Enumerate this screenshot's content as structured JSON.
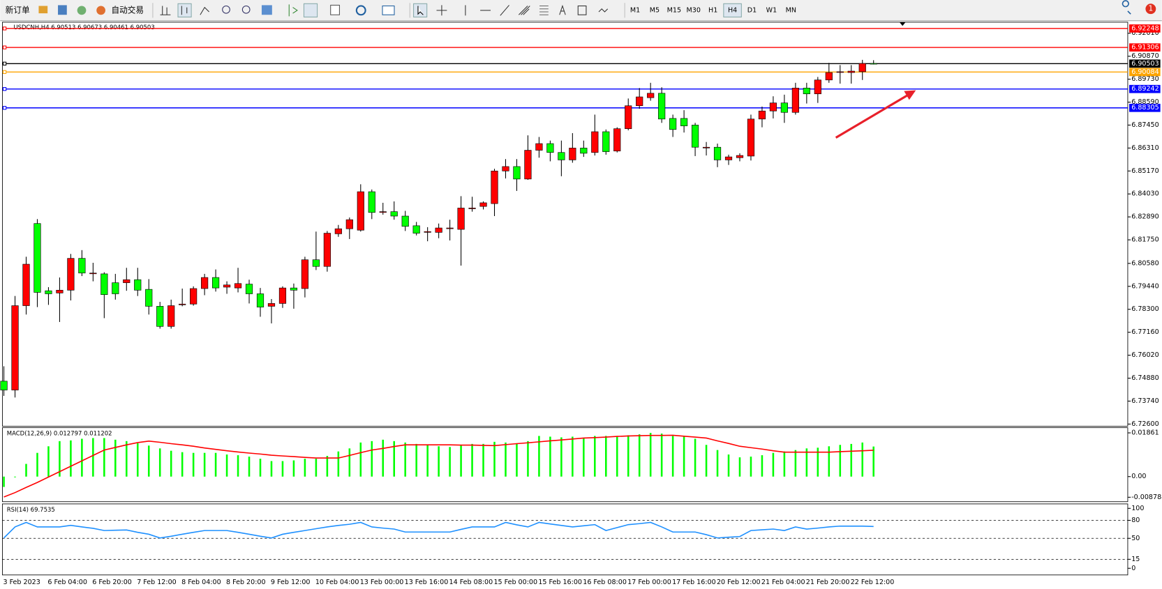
{
  "toolbar": {
    "buttons": [
      "新订单",
      "自动交易"
    ],
    "timeframes": [
      "M1",
      "M5",
      "M15",
      "M30",
      "H1",
      "H4",
      "D1",
      "W1",
      "MN"
    ],
    "active_timeframe": "H4",
    "badge": "1"
  },
  "chart_data": [
    {
      "type": "candlestick",
      "title": "USDCNH,H4  6.90513 6.90673 6.90461 6.90503",
      "categories": [
        "3 Feb 2023",
        null,
        null,
        null,
        "6 Feb 04:00",
        null,
        null,
        null,
        "6 Feb 20:00",
        null,
        null,
        null,
        "7 Feb 12:00",
        null,
        null,
        null,
        "8 Feb 04:00",
        null,
        null,
        null,
        "8 Feb 20:00",
        null,
        null,
        null,
        "9 Feb 12:00",
        null,
        null,
        null,
        "10 Feb 04:00",
        null,
        null,
        null,
        "13 Feb 00:00",
        null,
        null,
        null,
        "13 Feb 16:00",
        null,
        null,
        null,
        "14 Feb 08:00",
        null,
        null,
        null,
        "15 Feb 00:00",
        null,
        null,
        null,
        "15 Feb 16:00",
        null,
        null,
        null,
        "16 Feb 08:00",
        null,
        null,
        null,
        "17 Feb 00:00",
        null,
        null,
        null,
        "17 Feb 16:00",
        null,
        null,
        null,
        "20 Feb 12:00",
        null,
        null,
        null,
        "21 Feb 04:00",
        null,
        null,
        null,
        "21 Feb 20:00",
        null,
        null,
        null,
        "22 Feb 12:00",
        null,
        null
      ],
      "open": [
        6.7473,
        6.7429,
        6.7848,
        6.8256,
        6.7922,
        6.7911,
        6.7925,
        6.8083,
        6.801,
        6.8006,
        6.7962,
        6.7962,
        6.7977,
        6.7929,
        6.7845,
        6.7745,
        6.7856,
        6.7856,
        6.7933,
        6.7988,
        6.794,
        6.7936,
        6.7955,
        6.7907,
        6.7845,
        6.7859,
        6.7936,
        6.7933,
        6.8076,
        6.8043,
        6.8205,
        6.823,
        6.8223,
        6.8414,
        6.8315,
        6.8315,
        6.8293,
        6.8245,
        6.8216,
        6.8212,
        6.8234,
        6.8227,
        6.8333,
        6.8341,
        6.8355,
        6.8517,
        6.8539,
        6.8477,
        6.862,
        6.8653,
        6.8609,
        6.8572,
        6.8631,
        6.8609,
        6.8712,
        6.8616,
        6.8727,
        6.8841,
        6.8881,
        6.8903,
        6.8778,
        6.8778,
        6.8745,
        6.8635,
        6.8635,
        6.8572,
        6.8583,
        6.8591,
        6.8775,
        6.8815,
        6.8855,
        6.8808,
        6.8929,
        6.89,
        6.8969,
        6.901,
        6.9006,
        6.901,
        6.90513
      ],
      "high": [
        6.7547,
        6.7896,
        6.8091,
        6.8278,
        6.794,
        6.7988,
        6.8105,
        6.8124,
        6.8061,
        6.8014,
        6.8006,
        6.8036,
        6.8036,
        6.798,
        6.7867,
        6.7878,
        6.7933,
        6.7944,
        6.8006,
        6.8028,
        6.7969,
        6.8036,
        6.7977,
        6.7936,
        6.7881,
        6.7944,
        6.7958,
        6.8091,
        6.8216,
        6.8219,
        6.8249,
        6.8286,
        6.8451,
        6.8425,
        6.8359,
        6.8366,
        6.8319,
        6.8264,
        6.8238,
        6.8256,
        6.8275,
        6.8392,
        6.8389,
        6.8366,
        6.8528,
        6.8576,
        6.8576,
        6.8694,
        6.8686,
        6.8668,
        6.8668,
        6.8705,
        6.8668,
        6.8797,
        6.8723,
        6.8734,
        6.8877,
        6.8929,
        6.8955,
        6.8933,
        6.8797,
        6.8819,
        6.8756,
        6.8661,
        6.8653,
        6.8598,
        6.8605,
        6.8797,
        6.8837,
        6.8888,
        6.8896,
        6.8955,
        6.8955,
        6.8984,
        6.9054,
        6.9043,
        6.9043,
        6.9069,
        6.90673
      ],
      "low": [
        6.74,
        6.7392,
        6.7804,
        6.7841,
        6.7852,
        6.7767,
        6.7874,
        6.7995,
        6.7969,
        6.7786,
        6.7878,
        6.7922,
        6.7896,
        6.7804,
        6.7734,
        6.7734,
        6.7845,
        6.7848,
        6.79,
        6.7918,
        6.7907,
        6.7914,
        6.7859,
        6.7793,
        6.776,
        6.7837,
        6.7833,
        6.7889,
        6.8025,
        6.8017,
        6.819,
        6.8179,
        6.8216,
        6.8278,
        6.83,
        6.8275,
        6.8219,
        6.8197,
        6.8168,
        6.8183,
        6.8172,
        6.8047,
        6.8315,
        6.8326,
        6.8293,
        6.848,
        6.8418,
        6.8473,
        6.8583,
        6.8565,
        6.8491,
        6.8558,
        6.8587,
        6.8594,
        6.8598,
        6.8609,
        6.8719,
        6.8826,
        6.8866,
        6.8756,
        6.8686,
        6.8708,
        6.8591,
        6.8594,
        6.8536,
        6.8547,
        6.8565,
        6.8569,
        6.8734,
        6.8778,
        6.8756,
        6.8797,
        6.8852,
        6.8855,
        6.8955,
        6.8951,
        6.8951,
        6.8969,
        6.90461
      ],
      "close": [
        6.7429,
        6.7848,
        6.8054,
        6.7914,
        6.7907,
        6.7925,
        6.8083,
        6.801,
        6.801,
        6.7903,
        6.7907,
        6.7977,
        6.7925,
        6.7845,
        6.7745,
        6.7848,
        6.7856,
        6.7933,
        6.7988,
        6.7936,
        6.7951,
        6.7958,
        6.7907,
        6.7841,
        6.7859,
        6.7936,
        6.7925,
        6.8076,
        6.8043,
        6.8208,
        6.823,
        6.8275,
        6.8414,
        6.8311,
        6.8315,
        6.8293,
        6.8242,
        6.8208,
        6.8216,
        6.8234,
        6.8234,
        6.8333,
        6.8333,
        6.8359,
        6.8517,
        6.8539,
        6.8477,
        6.862,
        6.8653,
        6.8609,
        6.8572,
        6.8631,
        6.8605,
        6.8712,
        6.8613,
        6.8727,
        6.8841,
        6.8885,
        6.8903,
        6.8775,
        6.8723,
        6.8741,
        6.8635,
        6.8635,
        6.8572,
        6.8587,
        6.8594,
        6.8775,
        6.8815,
        6.8855,
        6.8808,
        6.8929,
        6.89,
        6.8969,
        6.9006,
        6.901,
        6.9013,
        6.9051,
        6.90503
      ],
      "up_color": "#ff0000",
      "down_color": "#00ff00",
      "wick_color": "#000000",
      "ylim": [
        6.7253,
        6.9256
      ],
      "yticks": [
        {
          "value": 6.9201,
          "label": "6.92010"
        },
        {
          "value": 6.9087,
          "label": "6.90870"
        },
        {
          "value": 6.8973,
          "label": "6.89730"
        },
        {
          "value": 6.8859,
          "label": "6.88590"
        },
        {
          "value": 6.8745,
          "label": "6.87450"
        },
        {
          "value": 6.8631,
          "label": "6.86310"
        },
        {
          "value": 6.8517,
          "label": "6.85170"
        },
        {
          "value": 6.8403,
          "label": "6.84030"
        },
        {
          "value": 6.8289,
          "label": "6.82890"
        },
        {
          "value": 6.8175,
          "label": "6.81750"
        },
        {
          "value": 6.8058,
          "label": "6.80580"
        },
        {
          "value": 6.7944,
          "label": "6.79440"
        },
        {
          "value": 6.783,
          "label": "6.78300"
        },
        {
          "value": 6.7716,
          "label": "6.77160"
        },
        {
          "value": 6.7602,
          "label": "6.76020"
        },
        {
          "value": 6.7488,
          "label": "6.74880"
        },
        {
          "value": 6.7374,
          "label": "6.73740"
        },
        {
          "value": 6.726,
          "label": "6.72600"
        }
      ],
      "levels": [
        {
          "value": 6.92248,
          "color": "#ff0000"
        },
        {
          "value": 6.91306,
          "color": "#ff0000"
        },
        {
          "value": 6.90503,
          "color": "#000000"
        },
        {
          "value": 6.90084,
          "color": "#ffa500"
        },
        {
          "value": 6.89242,
          "color": "#0000ff"
        },
        {
          "value": 6.88305,
          "color": "#0000ff"
        }
      ]
    },
    {
      "type": "combo",
      "title": "MACD(12,26,9) 0.012797 0.011202",
      "series": [
        {
          "kind": "bar",
          "color": "#00ff00",
          "values": [
            -0.0044,
            -0.0003,
            0.0054,
            0.0101,
            0.0129,
            0.0151,
            0.0154,
            0.0161,
            0.0164,
            0.0164,
            0.0157,
            0.0151,
            0.0142,
            0.0132,
            0.012,
            0.011,
            0.0104,
            0.0101,
            0.0101,
            0.0101,
            0.0094,
            0.0091,
            0.0085,
            0.0076,
            0.0066,
            0.0066,
            0.0069,
            0.0076,
            0.0076,
            0.0088,
            0.0107,
            0.012,
            0.0145,
            0.0151,
            0.0157,
            0.0151,
            0.0145,
            0.0139,
            0.0135,
            0.0129,
            0.0126,
            0.0135,
            0.0139,
            0.0139,
            0.0148,
            0.0145,
            0.0142,
            0.0151,
            0.0173,
            0.017,
            0.0167,
            0.017,
            0.0164,
            0.0173,
            0.0173,
            0.0173,
            0.0176,
            0.018,
            0.0186,
            0.0183,
            0.0173,
            0.017,
            0.0161,
            0.0135,
            0.0113,
            0.0094,
            0.0082,
            0.0085,
            0.0091,
            0.0101,
            0.0107,
            0.0113,
            0.012,
            0.0123,
            0.0129,
            0.0135,
            0.0139,
            0.0145,
            0.012797
          ]
        },
        {
          "kind": "line",
          "color": "#ff0000",
          "values": [
            -0.0087,
            -0.0068,
            -0.0046,
            -0.0025,
            -0.0002,
            0.0021,
            0.0044,
            0.0067,
            0.009,
            0.0113,
            0.0124,
            0.0135,
            0.0145,
            0.0151,
            0.0146,
            0.014,
            0.0135,
            0.0129,
            0.0122,
            0.0116,
            0.011,
            0.0105,
            0.01,
            0.0096,
            0.0091,
            0.0088,
            0.0085,
            0.0082,
            0.0079,
            0.0079,
            0.0079,
            0.009,
            0.0102,
            0.0113,
            0.012,
            0.0128,
            0.0135,
            0.0135,
            0.0135,
            0.0135,
            0.0135,
            0.0134,
            0.0134,
            0.0133,
            0.0132,
            0.0136,
            0.014,
            0.0144,
            0.0148,
            0.0152,
            0.0156,
            0.016,
            0.0164,
            0.0166,
            0.0168,
            0.0171,
            0.0173,
            0.0174,
            0.0175,
            0.0175,
            0.0176,
            0.0172,
            0.0168,
            0.0164,
            0.0152,
            0.0141,
            0.0129,
            0.0123,
            0.0117,
            0.011,
            0.0104,
            0.0104,
            0.0104,
            0.0104,
            0.0104,
            0.0106,
            0.0108,
            0.011,
            0.011202
          ]
        }
      ],
      "ylim": [
        -0.008788,
        0.01861
      ],
      "yticks": [
        0.01861,
        {
          "value": 0,
          "label": "0.00"
        },
        -0.008788
      ]
    },
    {
      "type": "line",
      "title": "RSI(14) 69.7535",
      "color": "#1e90ff",
      "values": [
        50.6,
        69.0,
        76.5,
        69.0,
        69.0,
        69.0,
        71.6,
        69.0,
        66.7,
        63.0,
        63.5,
        64.0,
        60.0,
        56.8,
        50.6,
        53.5,
        56.8,
        60.0,
        63.0,
        63.0,
        63.0,
        60.0,
        56.8,
        53.5,
        50.6,
        56.8,
        60.0,
        63.0,
        66.0,
        69.0,
        71.5,
        73.5,
        76.5,
        69.0,
        67.0,
        65.4,
        60.5,
        60.5,
        60.5,
        60.5,
        60.5,
        65.0,
        69.0,
        69.0,
        69.0,
        76.5,
        72.5,
        69.0,
        76.5,
        74.0,
        71.5,
        69.0,
        70.9,
        72.8,
        63.0,
        67.9,
        72.8,
        74.5,
        76.5,
        69.0,
        60.5,
        60.5,
        60.5,
        56.0,
        50.6,
        51.8,
        53.0,
        63.0,
        64.2,
        65.4,
        63.0,
        69.0,
        65.4,
        67.0,
        69.0,
        70.4,
        70.4,
        70.4,
        69.7535
      ],
      "ylim": [
        0,
        100
      ],
      "yticks": [
        100,
        80,
        50,
        15,
        0
      ],
      "levels": [
        80,
        50,
        15
      ]
    }
  ]
}
